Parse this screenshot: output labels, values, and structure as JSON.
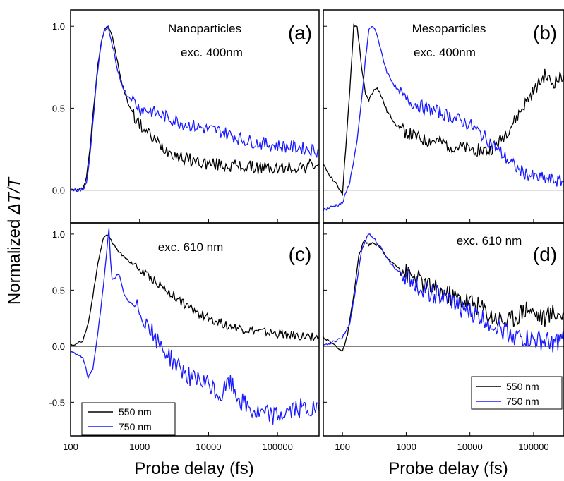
{
  "figure": {
    "ylabel_prefix": "Normalized ",
    "ylabel_math": "ΔT/T",
    "xlabel_left": "Probe delay (fs)",
    "xlabel_right": "Probe delay (fs)"
  },
  "legend": [
    {
      "name": "550 nm",
      "color": "#000000"
    },
    {
      "name": "750 nm",
      "color": "#1a1aff"
    }
  ],
  "chart_data": [
    {
      "type": "line",
      "panel": "(a)",
      "annotations": [
        "Nanoparticles",
        "exc. 400nm"
      ],
      "xscale": "log",
      "xlim": [
        100,
        400000
      ],
      "ylim": [
        -0.2,
        1.1
      ],
      "yticks": [
        "1.0",
        "0.5",
        "0.0"
      ],
      "xticks": [],
      "series": [
        {
          "name": "550 nm",
          "color": "#000000",
          "x": [
            100,
            130,
            150,
            170,
            190,
            210,
            230,
            250,
            270,
            290,
            310,
            330,
            350,
            380,
            420,
            460,
            520,
            600,
            700,
            850,
            1000,
            1300,
            1700,
            2200,
            3000,
            4000,
            6000,
            10000,
            20000,
            40000,
            100000,
            200000,
            400000
          ],
          "y": [
            0,
            0,
            0.01,
            0.08,
            0.25,
            0.45,
            0.62,
            0.77,
            0.87,
            0.94,
            0.98,
            1.0,
            1.0,
            0.97,
            0.9,
            0.82,
            0.7,
            0.6,
            0.52,
            0.45,
            0.4,
            0.35,
            0.3,
            0.26,
            0.23,
            0.2,
            0.18,
            0.16,
            0.15,
            0.14,
            0.13,
            0.14,
            0.16
          ]
        },
        {
          "name": "750 nm",
          "color": "#1a1aff",
          "x": [
            100,
            150,
            170,
            190,
            210,
            230,
            250,
            270,
            290,
            310,
            330,
            350,
            380,
            420,
            480,
            550,
            650,
            800,
            1000,
            1500,
            2000,
            3000,
            5000,
            8000,
            10000,
            15000,
            20000,
            30000,
            50000,
            100000,
            200000,
            400000
          ],
          "y": [
            0,
            0,
            0.05,
            0.2,
            0.4,
            0.6,
            0.75,
            0.86,
            0.93,
            0.98,
            0.98,
            1.0,
            0.92,
            0.85,
            0.72,
            0.65,
            0.58,
            0.55,
            0.5,
            0.48,
            0.46,
            0.43,
            0.4,
            0.38,
            0.37,
            0.36,
            0.34,
            0.31,
            0.29,
            0.27,
            0.26,
            0.24
          ]
        }
      ]
    },
    {
      "type": "line",
      "panel": "(b)",
      "annotations": [
        "Mesoparticles",
        "exc. 400nm"
      ],
      "xscale": "log",
      "xlim": [
        50,
        300000
      ],
      "ylim": [
        -0.2,
        1.1
      ],
      "yticks": [],
      "xticks": [],
      "series": [
        {
          "name": "550 nm",
          "color": "#000000",
          "x": [
            50,
            100,
            130,
            150,
            170,
            200,
            230,
            260,
            300,
            350,
            400,
            500,
            700,
            1000,
            1500,
            2000,
            3000,
            5000,
            10000,
            20000,
            30000,
            50000,
            80000,
            100000,
            150000,
            200000,
            300000
          ],
          "y": [
            0.15,
            -0.02,
            0.6,
            1.0,
            1.0,
            0.75,
            0.58,
            0.55,
            0.6,
            0.63,
            0.58,
            0.48,
            0.4,
            0.35,
            0.32,
            0.3,
            0.3,
            0.27,
            0.25,
            0.24,
            0.3,
            0.42,
            0.55,
            0.6,
            0.7,
            0.65,
            0.7
          ]
        },
        {
          "name": "750 nm",
          "color": "#1a1aff",
          "x": [
            50,
            100,
            130,
            170,
            200,
            230,
            260,
            300,
            350,
            400,
            500,
            700,
            1000,
            1500,
            2000,
            3000,
            5000,
            10000,
            20000,
            40000,
            60000,
            100000,
            200000,
            300000
          ],
          "y": [
            -0.12,
            -0.08,
            0.05,
            0.3,
            0.55,
            0.8,
            0.98,
            1.0,
            0.95,
            0.85,
            0.72,
            0.62,
            0.55,
            0.52,
            0.5,
            0.48,
            0.45,
            0.4,
            0.3,
            0.18,
            0.12,
            0.08,
            0.06,
            0.05
          ]
        }
      ]
    },
    {
      "type": "line",
      "panel": "(c)",
      "annotations": [
        "exc. 610 nm"
      ],
      "xscale": "log",
      "xlim": [
        100,
        400000
      ],
      "ylim": [
        -0.8,
        1.1
      ],
      "yticks": [
        "1.0",
        "0.5",
        "0.0",
        "-0.5"
      ],
      "xticks": [
        "100",
        "1000",
        "10000",
        "100000"
      ],
      "series": [
        {
          "name": "550 nm",
          "color": "#000000",
          "x": [
            100,
            150,
            180,
            210,
            240,
            270,
            300,
            330,
            360,
            400,
            450,
            500,
            600,
            700,
            850,
            1000,
            1300,
            1700,
            2200,
            3000,
            4000,
            6000,
            10000,
            20000,
            40000,
            100000,
            200000,
            400000
          ],
          "y": [
            0,
            0.05,
            0.2,
            0.45,
            0.68,
            0.85,
            0.96,
            1.0,
            0.98,
            0.93,
            0.88,
            0.84,
            0.8,
            0.76,
            0.72,
            0.68,
            0.63,
            0.58,
            0.52,
            0.46,
            0.4,
            0.32,
            0.25,
            0.18,
            0.14,
            0.11,
            0.09,
            0.08
          ]
        },
        {
          "name": "750 nm",
          "color": "#1a1aff",
          "x": [
            100,
            150,
            180,
            210,
            240,
            270,
            300,
            330,
            360,
            380,
            400,
            450,
            500,
            600,
            700,
            850,
            1000,
            1300,
            1700,
            2200,
            3000,
            4000,
            6000,
            10000,
            15000,
            20000,
            30000,
            50000,
            100000,
            200000,
            400000
          ],
          "y": [
            -0.05,
            -0.1,
            -0.28,
            -0.2,
            0.05,
            0.3,
            0.55,
            0.8,
            1.05,
            0.75,
            0.6,
            0.62,
            0.65,
            0.45,
            0.4,
            0.35,
            0.32,
            0.2,
            0.05,
            -0.02,
            -0.12,
            -0.2,
            -0.3,
            -0.35,
            -0.45,
            -0.32,
            -0.5,
            -0.6,
            -0.62,
            -0.55,
            -0.58
          ]
        }
      ]
    },
    {
      "type": "line",
      "panel": "(d)",
      "annotations": [
        "exc. 610 nm"
      ],
      "xscale": "log",
      "xlim": [
        50,
        300000
      ],
      "ylim": [
        -0.8,
        1.1
      ],
      "yticks": [],
      "xticks": [
        "100",
        "1000",
        "10000",
        "100000"
      ],
      "series": [
        {
          "name": "550 nm",
          "color": "#000000",
          "x": [
            50,
            80,
            100,
            120,
            150,
            180,
            220,
            260,
            300,
            350,
            400,
            500,
            700,
            1000,
            1500,
            2000,
            3000,
            5000,
            10000,
            15000,
            20000,
            40000,
            80000,
            100000,
            150000,
            200000,
            300000
          ],
          "y": [
            0.08,
            0.0,
            -0.05,
            0.1,
            0.45,
            0.8,
            0.95,
            0.9,
            0.92,
            0.9,
            0.88,
            0.78,
            0.72,
            0.65,
            0.6,
            0.55,
            0.5,
            0.45,
            0.4,
            0.35,
            0.28,
            0.22,
            0.35,
            0.3,
            0.25,
            0.3,
            0.28
          ]
        },
        {
          "name": "750 nm",
          "color": "#1a1aff",
          "x": [
            50,
            80,
            100,
            130,
            160,
            200,
            250,
            300,
            350,
            400,
            500,
            700,
            1000,
            1500,
            2000,
            3000,
            5000,
            10000,
            20000,
            40000,
            60000,
            100000,
            200000,
            300000
          ],
          "y": [
            0.0,
            0.05,
            0.08,
            0.2,
            0.5,
            0.85,
            1.0,
            0.98,
            0.92,
            0.88,
            0.78,
            0.68,
            0.62,
            0.55,
            0.5,
            0.45,
            0.4,
            0.3,
            0.22,
            0.12,
            0.08,
            0.05,
            0.03,
            0.05
          ]
        }
      ]
    }
  ]
}
